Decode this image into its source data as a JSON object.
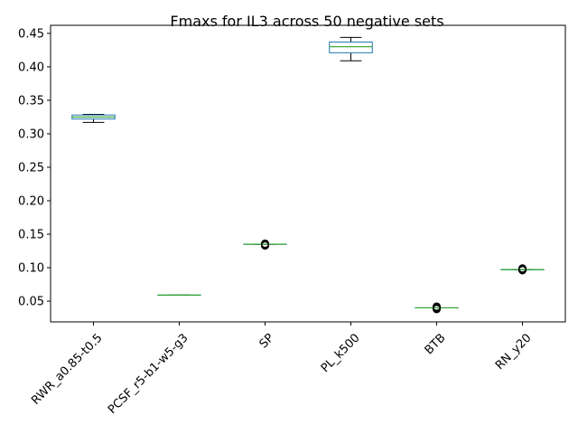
{
  "chart_data": {
    "type": "box",
    "title": "Fmaxs for IL3 across 50 negative sets",
    "xlabel": "",
    "ylabel": "",
    "ylim": [
      0.019,
      0.462
    ],
    "yticks": [
      "0.05",
      "0.10",
      "0.15",
      "0.20",
      "0.25",
      "0.30",
      "0.35",
      "0.40",
      "0.45"
    ],
    "grid": false,
    "categories": [
      "RWR_a0.85-t0.5",
      "PCSF_r5-b1-w5-g3",
      "SP",
      "PL_k500",
      "BTB",
      "RN_y20"
    ],
    "boxes": [
      {
        "whisker_low": 0.317,
        "q1": 0.322,
        "median": 0.325,
        "q3": 0.328,
        "whisker_high": 0.329,
        "outliers": []
      },
      {
        "whisker_low": 0.059,
        "q1": 0.059,
        "median": 0.059,
        "q3": 0.059,
        "whisker_high": 0.059,
        "outliers": []
      },
      {
        "whisker_low": 0.135,
        "q1": 0.135,
        "median": 0.135,
        "q3": 0.135,
        "whisker_high": 0.135,
        "outliers": [
          0.133,
          0.134,
          0.135,
          0.136
        ]
      },
      {
        "whisker_low": 0.409,
        "q1": 0.421,
        "median": 0.43,
        "q3": 0.437,
        "whisker_high": 0.444,
        "outliers": []
      },
      {
        "whisker_low": 0.04,
        "q1": 0.04,
        "median": 0.04,
        "q3": 0.04,
        "whisker_high": 0.04,
        "outliers": [
          0.038,
          0.039,
          0.04,
          0.041,
          0.042
        ]
      },
      {
        "whisker_low": 0.097,
        "q1": 0.097,
        "median": 0.097,
        "q3": 0.097,
        "whisker_high": 0.097,
        "outliers": [
          0.096,
          0.097,
          0.098,
          0.099
        ]
      }
    ],
    "colors": {
      "box": "#1f77b4",
      "median": "#2ca02c",
      "whisker": "#000000",
      "flier": "#000000"
    }
  }
}
